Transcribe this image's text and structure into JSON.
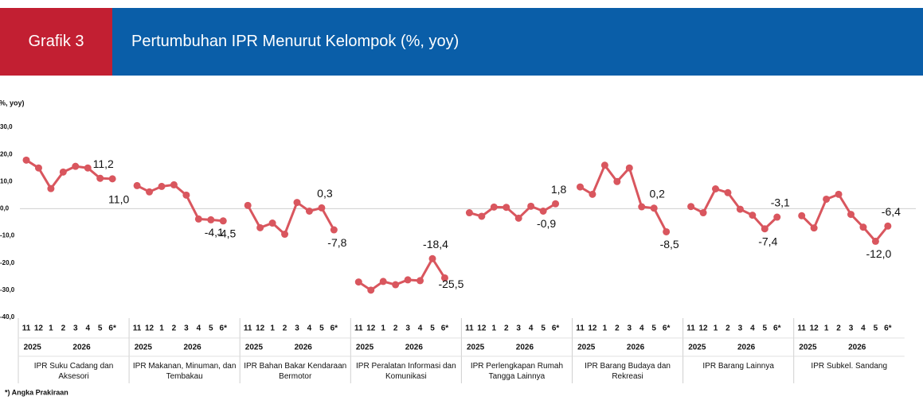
{
  "chart_data": {
    "type": "line",
    "label": "Grafik 3",
    "title": "Pertumbuhan IPR Menurut Kelompok (%, yoy)",
    "y_label": "(%, yoy)",
    "footnote": "*) Angka Prakiraan",
    "color": "#d9565e",
    "ylim": [
      -40,
      30
    ],
    "yticks": [
      {
        "value": 30,
        "label": "30,0"
      },
      {
        "value": 20,
        "label": "20,0"
      },
      {
        "value": 10,
        "label": "10,0"
      },
      {
        "value": 0,
        "label": "0,0"
      },
      {
        "value": -10,
        "label": "-10,0"
      },
      {
        "value": -20,
        "label": "-20,0"
      },
      {
        "value": -30,
        "label": "-30,0"
      },
      {
        "value": -40,
        "label": "-40,0"
      }
    ],
    "groups": [
      {
        "name": "IPR Suku Cadang dan Aksesori",
        "years": [
          "2025",
          "2026"
        ],
        "categories": [
          "11",
          "12",
          "1",
          "2",
          "3",
          "4",
          "5",
          "6*"
        ],
        "values": [
          17.9,
          15.0,
          7.4,
          13.5,
          15.6,
          15.0,
          11.2,
          11.0
        ],
        "value_labels": [
          null,
          null,
          null,
          null,
          null,
          null,
          "11,2",
          "11,0"
        ]
      },
      {
        "name": "IPR Makanan, Minuman, dan Tembakau",
        "years": [
          "2025",
          "2026"
        ],
        "categories": [
          "11",
          "12",
          "1",
          "2",
          "3",
          "4",
          "5",
          "6*"
        ],
        "values": [
          8.5,
          6.2,
          8.2,
          8.8,
          5.0,
          -3.8,
          -4.1,
          -4.5
        ],
        "value_labels": [
          null,
          null,
          null,
          null,
          null,
          null,
          "-4,1",
          "-4,5"
        ]
      },
      {
        "name": "IPR Bahan Bakar Kendaraan Bermotor",
        "years": [
          "2025",
          "2026"
        ],
        "categories": [
          "11",
          "12",
          "1",
          "2",
          "3",
          "4",
          "5",
          "6*"
        ],
        "values": [
          1.2,
          -7.0,
          -5.3,
          -9.4,
          2.3,
          -0.9,
          0.3,
          -7.8
        ],
        "value_labels": [
          null,
          null,
          null,
          null,
          null,
          null,
          "0,3",
          "-7,8"
        ]
      },
      {
        "name": "IPR Peralatan Informasi dan Komunikasi",
        "years": [
          "2025",
          "2026"
        ],
        "categories": [
          "11",
          "12",
          "1",
          "2",
          "3",
          "4",
          "5",
          "6*"
        ],
        "values": [
          -27.0,
          -30.0,
          -26.8,
          -28.0,
          -26.2,
          -26.5,
          -18.4,
          -25.5
        ],
        "value_labels": [
          null,
          null,
          null,
          null,
          null,
          null,
          "-18,4",
          "-25,5"
        ]
      },
      {
        "name": "IPR Perlengkapan Rumah Tangga Lainnya",
        "years": [
          "2025",
          "2026"
        ],
        "categories": [
          "11",
          "12",
          "1",
          "2",
          "3",
          "4",
          "5",
          "6*"
        ],
        "values": [
          -1.5,
          -2.8,
          0.6,
          0.5,
          -3.5,
          0.9,
          -0.9,
          1.8
        ],
        "value_labels": [
          null,
          null,
          null,
          null,
          null,
          null,
          "-0,9",
          "1,8"
        ]
      },
      {
        "name": "IPR Barang Budaya dan Rekreasi",
        "years": [
          "2025",
          "2026"
        ],
        "categories": [
          "11",
          "12",
          "1",
          "2",
          "3",
          "4",
          "5",
          "6*"
        ],
        "values": [
          8.0,
          5.3,
          16.0,
          10.0,
          15.0,
          0.7,
          0.2,
          -8.5
        ],
        "value_labels": [
          null,
          null,
          null,
          null,
          null,
          null,
          "0,2",
          "-8,5"
        ]
      },
      {
        "name": "IPR Barang Lainnya",
        "years": [
          "2025",
          "2026"
        ],
        "categories": [
          "11",
          "12",
          "1",
          "2",
          "3",
          "4",
          "5",
          "6*"
        ],
        "values": [
          0.8,
          -1.5,
          7.3,
          5.9,
          -0.2,
          -2.4,
          -7.4,
          -3.1
        ],
        "value_labels": [
          null,
          null,
          null,
          null,
          null,
          null,
          "-7,4",
          "-3,1"
        ]
      },
      {
        "name": "IPR  Subkel. Sandang",
        "years": [
          "2025",
          "2026"
        ],
        "categories": [
          "11",
          "12",
          "1",
          "2",
          "3",
          "4",
          "5",
          "6*"
        ],
        "values": [
          -2.6,
          -7.1,
          3.5,
          5.3,
          -2.1,
          -6.8,
          -12.0,
          -6.4
        ],
        "value_labels": [
          null,
          null,
          null,
          null,
          null,
          null,
          "-12,0",
          "-6,4"
        ]
      }
    ]
  }
}
